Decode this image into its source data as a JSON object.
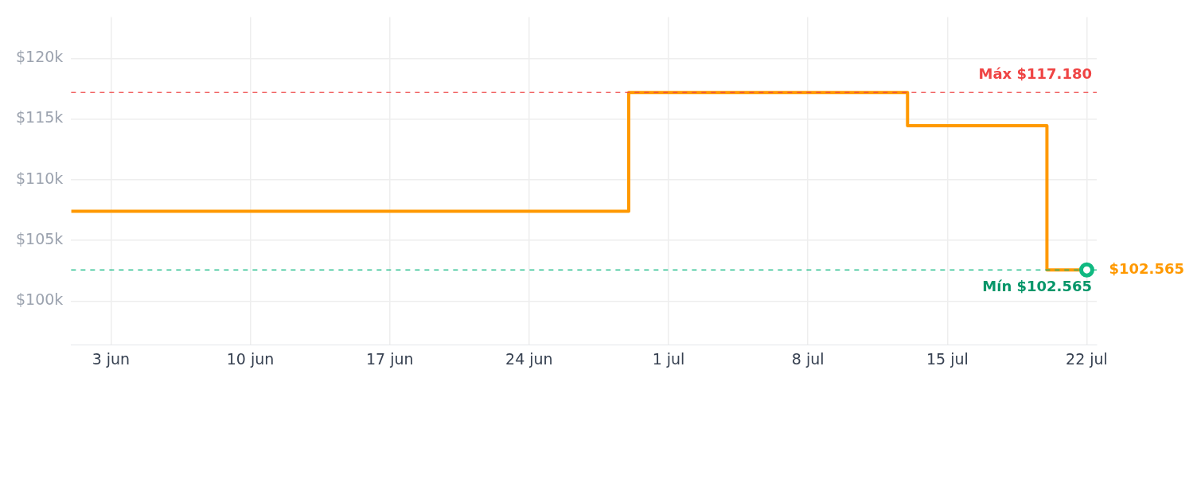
{
  "chart_data": {
    "type": "step",
    "x": [
      "--06-01",
      "--06-29",
      "--07-13",
      "--07-20",
      "--07-22"
    ],
    "series": [
      {
        "color": "#ff9900",
        "values": [
          107.4,
          117.18,
          114.45,
          102.565,
          102.565
        ]
      }
    ],
    "xlim": [
      "--06-01",
      "--07-22"
    ],
    "xticks": [
      {
        "value": "--06-03",
        "label": "3 jun"
      },
      {
        "value": "--06-10",
        "label": "10 jun"
      },
      {
        "value": "--06-17",
        "label": "17 jun"
      },
      {
        "value": "--06-24",
        "label": "24 jun"
      },
      {
        "value": "--07-01",
        "label": "1 jul"
      },
      {
        "value": "--07-08",
        "label": "8 jul"
      },
      {
        "value": "--07-15",
        "label": "15 jul"
      },
      {
        "value": "--07-22",
        "label": "22 jul"
      }
    ],
    "ylim": [
      96.4,
      123.4
    ],
    "yticks": [
      {
        "value": 100,
        "label": "$100k"
      },
      {
        "value": 105,
        "label": "$105k"
      },
      {
        "value": 110,
        "label": "$110k"
      },
      {
        "value": 115,
        "label": "$115k"
      },
      {
        "value": 120,
        "label": "$120k"
      }
    ],
    "ref_lines": [
      {
        "axis": "y",
        "value": 117.18,
        "label": "Máx $117.180",
        "color": "#ef4444",
        "line_style": "dashed"
      },
      {
        "axis": "y",
        "value": 102.565,
        "label": "Mín $102.565",
        "color": "#10b981",
        "line_style": "dashed"
      }
    ],
    "annotations": [
      {
        "text": "$102.565",
        "x": "--07-22",
        "y": 102.565
      }
    ],
    "grid": true,
    "legend": false,
    "marker": "none",
    "line_style": "solid"
  }
}
